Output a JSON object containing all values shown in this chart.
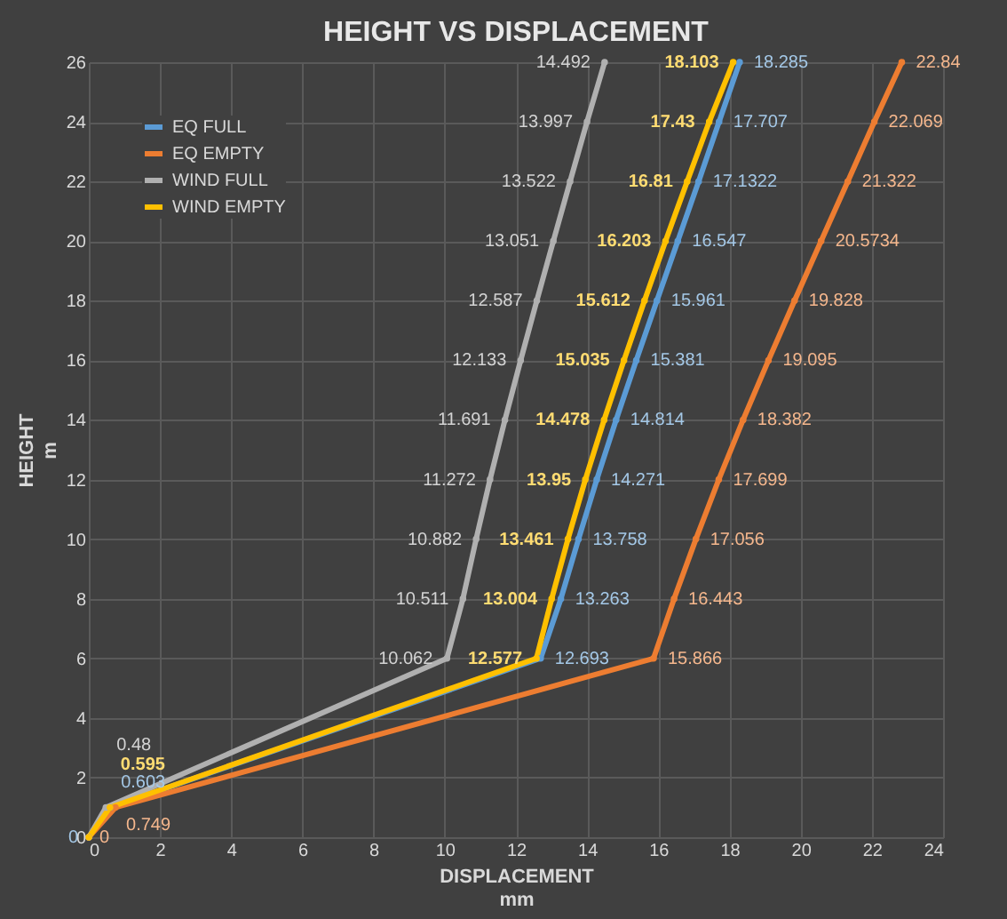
{
  "chart_data": {
    "type": "line",
    "title": "HEIGHT VS DISPLACEMENT",
    "xlabel": "DISPLACEMENT\nmm",
    "ylabel": "HEIGHT\nm",
    "xlim": [
      0,
      24
    ],
    "xticks": [
      0,
      2,
      4,
      6,
      8,
      10,
      12,
      14,
      16,
      18,
      20,
      22,
      24
    ],
    "ylim": [
      0,
      26
    ],
    "yticks": [
      0,
      2,
      4,
      6,
      8,
      10,
      12,
      14,
      16,
      18,
      20,
      22,
      24,
      26
    ],
    "grid": true,
    "legend": "top left",
    "marker": "circle",
    "line_style": "solid",
    "series": [
      {
        "name": "EQ FULL",
        "color": "#5b9bd5",
        "x": [
          0,
          0.603,
          12.693,
          13.263,
          13.758,
          14.271,
          14.814,
          15.381,
          15.961,
          16.547,
          17.1322,
          17.707,
          18.285
        ],
        "values": [
          0,
          1,
          6,
          8,
          10,
          12,
          14,
          16,
          18,
          20,
          22,
          24,
          26
        ]
      },
      {
        "name": "EQ EMPTY",
        "color": "#ed7d31",
        "x": [
          0,
          0.749,
          15.866,
          16.443,
          17.056,
          17.699,
          18.382,
          19.095,
          19.828,
          20.5734,
          21.322,
          22.069,
          22.84
        ],
        "values": [
          0,
          1,
          6,
          8,
          10,
          12,
          14,
          16,
          18,
          20,
          22,
          24,
          26
        ]
      },
      {
        "name": "WIND FULL",
        "color": "#b0b0b0",
        "x": [
          0,
          0.48,
          10.062,
          10.511,
          10.882,
          11.272,
          11.691,
          12.133,
          12.587,
          13.051,
          13.522,
          13.997,
          14.492
        ],
        "values": [
          0,
          1,
          6,
          8,
          10,
          12,
          14,
          16,
          18,
          20,
          22,
          24,
          26
        ]
      },
      {
        "name": "WIND EMPTY",
        "color": "#ffc000",
        "x": [
          0,
          0.595,
          12.577,
          13.004,
          13.461,
          13.95,
          14.478,
          15.035,
          15.612,
          16.203,
          16.81,
          17.43,
          18.103
        ],
        "values": [
          0,
          1,
          6,
          8,
          10,
          12,
          14,
          16,
          18,
          20,
          22,
          24,
          26
        ]
      }
    ],
    "annotations": [
      {
        "text": "0",
        "x": 0,
        "y": 0
      },
      {
        "text": "0",
        "x": 0,
        "y": 0
      },
      {
        "text": "0.603",
        "x": 0.603,
        "y": 1
      },
      {
        "text": "12.693",
        "x": 12.693,
        "y": 6
      },
      {
        "text": "13.263",
        "x": 13.263,
        "y": 8
      },
      {
        "text": "13.758",
        "x": 13.758,
        "y": 10
      },
      {
        "text": "14.271",
        "x": 14.271,
        "y": 12
      },
      {
        "text": "14.814",
        "x": 14.814,
        "y": 14
      },
      {
        "text": "15.381",
        "x": 15.381,
        "y": 16
      },
      {
        "text": "15.961",
        "x": 15.961,
        "y": 18
      },
      {
        "text": "16.547",
        "x": 16.547,
        "y": 20
      },
      {
        "text": "17.1322",
        "x": 17.1322,
        "y": 22
      },
      {
        "text": "17.707",
        "x": 17.707,
        "y": 24
      },
      {
        "text": "18.285",
        "x": 18.285,
        "y": 26
      },
      {
        "text": "0.749",
        "x": 0.749,
        "y": 1
      },
      {
        "text": "15.866",
        "x": 15.866,
        "y": 6
      },
      {
        "text": "16.443",
        "x": 16.443,
        "y": 8
      },
      {
        "text": "17.056",
        "x": 17.056,
        "y": 10
      },
      {
        "text": "17.699",
        "x": 17.699,
        "y": 12
      },
      {
        "text": "18.382",
        "x": 18.382,
        "y": 14
      },
      {
        "text": "19.095",
        "x": 19.095,
        "y": 16
      },
      {
        "text": "19.828",
        "x": 19.828,
        "y": 18
      },
      {
        "text": "20.5734",
        "x": 20.5734,
        "y": 20
      },
      {
        "text": "21.322",
        "x": 21.322,
        "y": 22
      },
      {
        "text": "22.069",
        "x": 22.069,
        "y": 24
      },
      {
        "text": "22.84",
        "x": 22.84,
        "y": 26
      },
      {
        "text": "0.48",
        "x": 0.48,
        "y": 1
      },
      {
        "text": "10.062",
        "x": 10.062,
        "y": 6
      },
      {
        "text": "10.511",
        "x": 10.511,
        "y": 8
      },
      {
        "text": "10.882",
        "x": 10.882,
        "y": 10
      },
      {
        "text": "11.272",
        "x": 11.272,
        "y": 12
      },
      {
        "text": "11.691",
        "x": 11.691,
        "y": 14
      },
      {
        "text": "12.133",
        "x": 12.133,
        "y": 16
      },
      {
        "text": "12.587",
        "x": 12.587,
        "y": 18
      },
      {
        "text": "13.051",
        "x": 13.051,
        "y": 20
      },
      {
        "text": "13.522",
        "x": 13.522,
        "y": 22
      },
      {
        "text": "13.997",
        "x": 13.997,
        "y": 24
      },
      {
        "text": "14.492",
        "x": 14.492,
        "y": 26
      },
      {
        "text": "0.595",
        "x": 0.595,
        "y": 1
      },
      {
        "text": "12.577",
        "x": 12.577,
        "y": 6
      },
      {
        "text": "13.004",
        "x": 13.004,
        "y": 8
      },
      {
        "text": "13.461",
        "x": 13.461,
        "y": 10
      },
      {
        "text": "13.95",
        "x": 13.95,
        "y": 12
      },
      {
        "text": "14.478",
        "x": 14.478,
        "y": 14
      },
      {
        "text": "15.035",
        "x": 15.035,
        "y": 16
      },
      {
        "text": "15.612",
        "x": 15.612,
        "y": 18
      },
      {
        "text": "16.203",
        "x": 16.203,
        "y": 20
      },
      {
        "text": "16.81",
        "x": 16.81,
        "y": 22
      },
      {
        "text": "17.43",
        "x": 17.43,
        "y": 24
      },
      {
        "text": "18.103",
        "x": 18.103,
        "y": 26
      }
    ]
  }
}
